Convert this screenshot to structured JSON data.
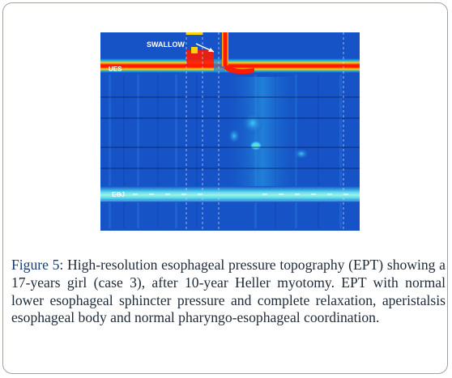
{
  "figure": {
    "plot": {
      "type": "esophageal-pressure-topography",
      "labels": {
        "swallow": "SWALLOW",
        "ues": "UES",
        "egj": "EGJ"
      },
      "colors": {
        "background": "#1553c6",
        "high_pressure": "#ff1a00",
        "mid_pressure": "#ffd400",
        "low_pressure": "#3fd3ff",
        "swallow_marker": "#ffd400"
      }
    },
    "caption": {
      "label": "Figure 5:",
      "text": " High-resolution esophageal pressure topography (EPT) showing a 17-years girl (case 3), after 10-year Heller myotomy. EPT with normal lower esophageal sphincter pressure and complete relaxation, aperistalsis esophageal body and normal pharyngo-esophageal coordination."
    }
  }
}
